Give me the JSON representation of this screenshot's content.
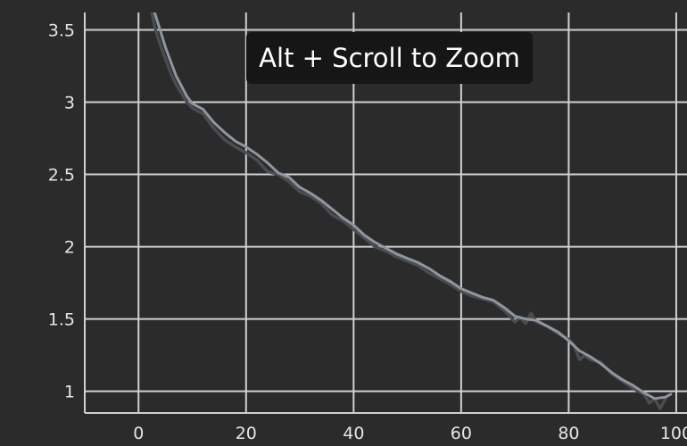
{
  "tooltip": {
    "text": "Alt + Scroll to Zoom"
  },
  "colors": {
    "background": "#2b2b2b",
    "grid": "#d0d0d0",
    "raw_line": "#4a4c50",
    "smoothed_line": "#8f96a0",
    "tooltip_bg": "#161616"
  },
  "chart_data": {
    "type": "line",
    "title": "",
    "xlabel": "",
    "ylabel": "",
    "grid": true,
    "xlim": [
      -10,
      102
    ],
    "ylim": [
      0.85,
      3.62
    ],
    "xticks": [
      0,
      20,
      40,
      60,
      80,
      100
    ],
    "yticks": [
      1,
      1.5,
      2,
      2.5,
      3,
      3.5
    ],
    "series": [
      {
        "values_x": [
          2,
          3,
          4,
          5,
          6,
          7,
          8,
          9,
          10,
          12,
          14,
          16,
          18,
          20,
          22,
          24,
          26,
          28,
          30,
          32,
          34,
          36,
          38,
          40,
          42,
          44,
          46,
          48,
          50,
          52,
          54,
          56,
          58,
          60,
          62,
          64,
          66,
          68,
          70,
          71,
          72,
          73,
          74,
          76,
          78,
          80,
          81,
          82,
          83,
          84,
          86,
          88,
          90,
          92,
          94,
          95,
          96,
          97,
          98
        ],
        "values_y": [
          3.72,
          3.52,
          3.4,
          3.3,
          3.2,
          3.12,
          3.06,
          3.0,
          2.96,
          2.92,
          2.82,
          2.74,
          2.69,
          2.65,
          2.6,
          2.52,
          2.5,
          2.45,
          2.38,
          2.35,
          2.3,
          2.22,
          2.18,
          2.12,
          2.06,
          2.0,
          1.97,
          1.93,
          1.9,
          1.87,
          1.82,
          1.78,
          1.74,
          1.69,
          1.66,
          1.64,
          1.62,
          1.56,
          1.48,
          1.51,
          1.47,
          1.54,
          1.48,
          1.45,
          1.4,
          1.36,
          1.32,
          1.22,
          1.25,
          1.22,
          1.2,
          1.12,
          1.07,
          1.02,
          0.98,
          0.92,
          0.95,
          0.88,
          0.95
        ]
      },
      {
        "values_x": [
          3,
          4,
          5,
          6,
          7,
          8,
          9,
          10,
          12,
          14,
          16,
          18,
          20,
          22,
          24,
          26,
          28,
          30,
          32,
          34,
          36,
          38,
          40,
          42,
          44,
          46,
          48,
          50,
          52,
          54,
          56,
          58,
          60,
          62,
          64,
          66,
          68,
          70,
          72,
          74,
          76,
          78,
          80,
          82,
          84,
          86,
          88,
          90,
          92,
          94,
          96,
          98,
          99
        ],
        "values_y": [
          3.62,
          3.5,
          3.38,
          3.28,
          3.18,
          3.11,
          3.04,
          2.99,
          2.95,
          2.86,
          2.79,
          2.73,
          2.69,
          2.64,
          2.58,
          2.51,
          2.48,
          2.41,
          2.37,
          2.32,
          2.26,
          2.2,
          2.15,
          2.08,
          2.03,
          1.99,
          1.95,
          1.92,
          1.89,
          1.85,
          1.8,
          1.76,
          1.71,
          1.68,
          1.65,
          1.63,
          1.58,
          1.52,
          1.5,
          1.49,
          1.45,
          1.41,
          1.35,
          1.28,
          1.24,
          1.19,
          1.13,
          1.08,
          1.04,
          0.99,
          0.95,
          0.96,
          0.98
        ]
      }
    ]
  }
}
